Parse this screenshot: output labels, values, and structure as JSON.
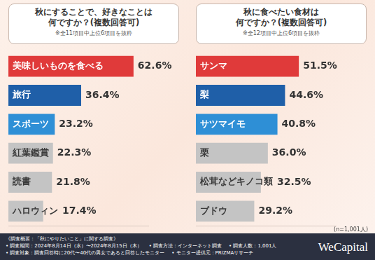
{
  "chart_data": [
    {
      "type": "bar",
      "orientation": "horizontal",
      "title": [
        "秋にすることで、好きなことは",
        "何ですか？(複数回答可)"
      ],
      "subtitle": "※全11項目中上位6項目を抜粋",
      "categories": [
        "美味しいものを食べる",
        "旅行",
        "スポーツ",
        "紅葉鑑賞",
        "読書",
        "ハロウィン"
      ],
      "values": [
        62.6,
        36.4,
        23.2,
        22.3,
        21.8,
        17.4
      ],
      "value_labels": [
        "62.6%",
        "36.4%",
        "23.2%",
        "22.3%",
        "21.8%",
        "17.4%"
      ],
      "colors": [
        "#e03a3a",
        "#1f5fa8",
        "#2e8fd6",
        "#c4c4c4",
        "#c4c4c4",
        "#c4c4c4"
      ],
      "xlim": [
        0,
        70
      ],
      "grid": false,
      "tick_labels": false,
      "data_labels": true
    },
    {
      "type": "bar",
      "orientation": "horizontal",
      "title": [
        "秋に食べたい食材は",
        "何ですか？(複数回答可)"
      ],
      "subtitle": "※全12項目中上位6項目を抜粋",
      "categories": [
        "サンマ",
        "梨",
        "サツマイモ",
        "栗",
        "松茸などキノコ類",
        "ブドウ"
      ],
      "values": [
        51.5,
        44.6,
        40.8,
        36.0,
        32.5,
        29.2
      ],
      "value_labels": [
        "51.5%",
        "44.6%",
        "40.8%",
        "36.0%",
        "32.5%",
        "29.2%"
      ],
      "colors": [
        "#e03a3a",
        "#1f5fa8",
        "#2e8fd6",
        "#c4c4c4",
        "#c4c4c4",
        "#c4c4c4"
      ],
      "xlim": [
        0,
        70
      ],
      "grid": false,
      "tick_labels": false,
      "data_labels": true
    }
  ],
  "sample_note": "(n=1,001人)",
  "footer": {
    "heading": "《調査概要：「秋にやりたいこと」に関する調査》",
    "rows": [
      [
        "• 調査期間：2024年8月14日（水）〜2024年8月15日（木）",
        "• 調査方法：インターネット調査",
        "• 調査人数：1,001人"
      ],
      [
        "• 調査対象：調査回答時に20代〜40代の男女であると回答したモニター",
        "• モニター提供元：PRIZMAリサーチ"
      ]
    ]
  },
  "logo": "WeCapital"
}
